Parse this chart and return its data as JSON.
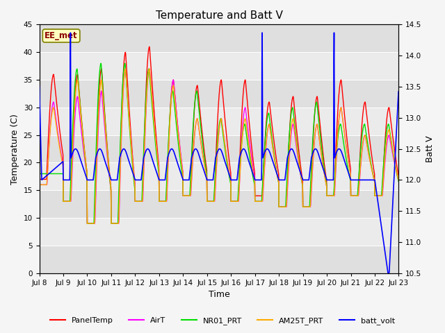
{
  "title": "Temperature and Batt V",
  "xlabel": "Time",
  "ylabel_left": "Temperature (C)",
  "ylabel_right": "Batt V",
  "annotation": "EE_met",
  "ylim_left": [
    0,
    45
  ],
  "ylim_right": [
    10.5,
    14.5
  ],
  "yticks_left": [
    0,
    5,
    10,
    15,
    20,
    25,
    30,
    35,
    40,
    45
  ],
  "yticks_right": [
    10.5,
    11.0,
    11.5,
    12.0,
    12.5,
    13.0,
    13.5,
    14.0,
    14.5
  ],
  "xtick_labels": [
    "Jul 8",
    "Jul 9",
    "Jul 10",
    "Jul 11",
    "Jul 12",
    "Jul 13",
    "Jul 14",
    "Jul 15",
    "Jul 16",
    "Jul 17",
    "Jul 18",
    "Jul 19",
    "Jul 20",
    "Jul 21",
    "Jul 22",
    "Jul 23"
  ],
  "colors": {
    "PanelTemp": "#ff0000",
    "AirT": "#ff00ff",
    "NR01_PRT": "#00dd00",
    "AM25T_PRT": "#ffaa00",
    "batt_volt": "#0000ff"
  },
  "title_fontsize": 11,
  "axis_label_fontsize": 9,
  "tick_fontsize": 7.5,
  "legend_fontsize": 8,
  "linewidth": 1.0,
  "plot_bg": "#ebebeb",
  "fig_bg": "#f5f5f5"
}
